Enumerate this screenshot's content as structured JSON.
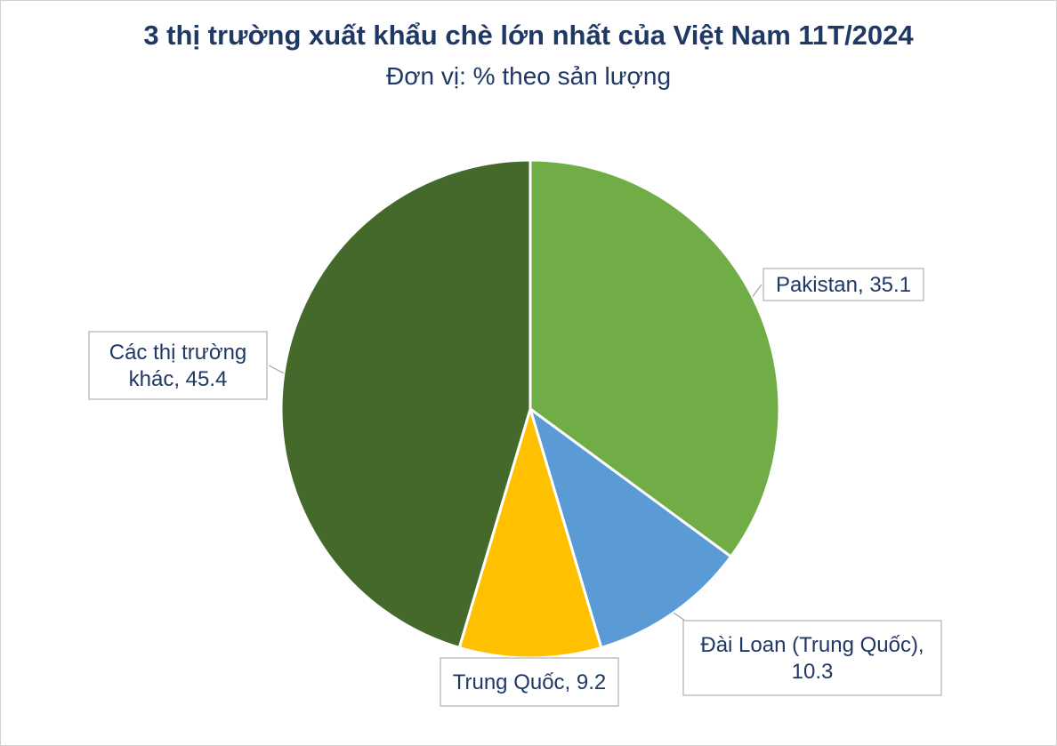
{
  "chart_data": {
    "type": "pie",
    "title": "3 thị trường xuất khẩu chè lớn nhất của Việt Nam 11T/2024",
    "subtitle": "Đơn vị: % theo sản lượng",
    "slices": [
      {
        "label": "Pakistan",
        "value": 35.1,
        "color": "#70ad47",
        "callout": [
          "Pakistan, 35.1"
        ]
      },
      {
        "label": "Đài Loan (Trung Quốc)",
        "value": 10.3,
        "color": "#5b9bd5",
        "callout": [
          "Đài Loan (Trung Quốc),",
          "10.3"
        ]
      },
      {
        "label": "Trung Quốc",
        "value": 9.2,
        "color": "#ffc000",
        "callout": [
          "Trung Quốc, 9.2"
        ]
      },
      {
        "label": "Các thị trường khác",
        "value": 45.4,
        "color": "#44692a",
        "callout": [
          "Các thị trường",
          "khác, 45.4"
        ]
      }
    ]
  }
}
